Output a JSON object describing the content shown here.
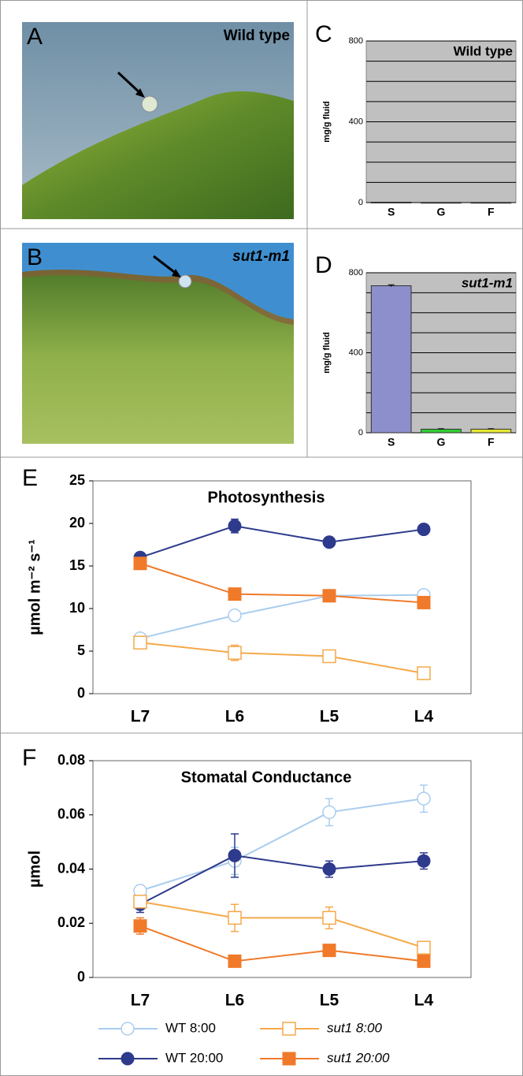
{
  "photos": [
    {
      "label": "A",
      "caption": "Wild type"
    },
    {
      "label": "B",
      "caption": "sut1-m1"
    }
  ],
  "chart_data": [
    {
      "type": "bar",
      "label": "C",
      "title": "Wild type",
      "ylabel": "mg/g fluid",
      "categories": [
        "S",
        "G",
        "F"
      ],
      "values": [
        2,
        1,
        1
      ],
      "colors": [
        "#8c8fcc",
        "#33cc33",
        "#e6e633"
      ],
      "ylim": [
        0,
        800
      ],
      "yticks": [
        0,
        400,
        800
      ],
      "minor_grid": [
        100,
        200,
        300,
        500,
        600,
        700
      ],
      "grid": true
    },
    {
      "type": "bar",
      "label": "D",
      "title": "sut1-m1",
      "ylabel": "mg/g fluid",
      "categories": [
        "S",
        "G",
        "F"
      ],
      "values": [
        735,
        18,
        18
      ],
      "errors": [
        5,
        2,
        2
      ],
      "colors": [
        "#8c8fcc",
        "#33cc33",
        "#e6e633"
      ],
      "ylim": [
        0,
        800
      ],
      "yticks": [
        0,
        400,
        800
      ],
      "minor_grid": [
        100,
        200,
        300,
        500,
        600,
        700
      ],
      "grid": true
    },
    {
      "type": "line",
      "label": "E",
      "title": "Photosynthesis",
      "ylabel": "µmol m⁻² s⁻¹",
      "categories": [
        "L7",
        "L6",
        "L5",
        "L4"
      ],
      "ylim": [
        0,
        25
      ],
      "yticks": [
        0,
        5,
        10,
        15,
        20,
        25
      ],
      "series": [
        {
          "color": "#a9cdee",
          "marker": "circle-open",
          "values": [
            6.5,
            9.2,
            11.5,
            11.6
          ],
          "errors": [
            0.4,
            0.5,
            0.4,
            0.4
          ]
        },
        {
          "color": "#2e3a8c",
          "marker": "circle",
          "values": [
            16,
            19.7,
            17.8,
            19.3
          ],
          "errors": [
            0.4,
            0.8,
            0.5,
            0.5
          ]
        },
        {
          "color": "#f5a94a",
          "marker": "square-open",
          "values": [
            6.0,
            4.8,
            4.4,
            2.4
          ],
          "errors": [
            0.5,
            0.9,
            0.6,
            0.5
          ]
        },
        {
          "color": "#f07a2a",
          "marker": "square",
          "values": [
            15.3,
            11.7,
            11.5,
            10.7
          ],
          "errors": [
            0.5,
            0.5,
            0.5,
            0.5
          ]
        }
      ]
    },
    {
      "type": "line",
      "label": "F",
      "title": "Stomatal Conductance",
      "ylabel": "µmol",
      "categories": [
        "L7",
        "L6",
        "L5",
        "L4"
      ],
      "ylim": [
        0,
        0.08
      ],
      "yticks": [
        0,
        0.02,
        0.04,
        0.06,
        0.08
      ],
      "legend": "bottom",
      "series": [
        {
          "name": "WT 8:00",
          "color": "#a9cdee",
          "marker": "circle-open",
          "values": [
            0.032,
            0.043,
            0.061,
            0.066
          ],
          "errors": [
            0.002,
            0.005,
            0.005,
            0.005
          ]
        },
        {
          "name": "WT 20:00",
          "color": "#2e3a8c",
          "marker": "circle",
          "values": [
            0.027,
            0.045,
            0.04,
            0.043
          ],
          "errors": [
            0.003,
            0.008,
            0.003,
            0.003
          ]
        },
        {
          "name": "sut1 8:00",
          "color": "#f5a94a",
          "marker": "square-open",
          "values": [
            0.028,
            0.022,
            0.022,
            0.011
          ],
          "errors": [
            0.002,
            0.005,
            0.004,
            0.002
          ]
        },
        {
          "name": "sut1 20:00",
          "color": "#f07a2a",
          "marker": "square",
          "values": [
            0.019,
            0.006,
            0.01,
            0.006
          ],
          "errors": [
            0.003,
            0.001,
            0.002,
            0.001
          ]
        }
      ]
    }
  ]
}
